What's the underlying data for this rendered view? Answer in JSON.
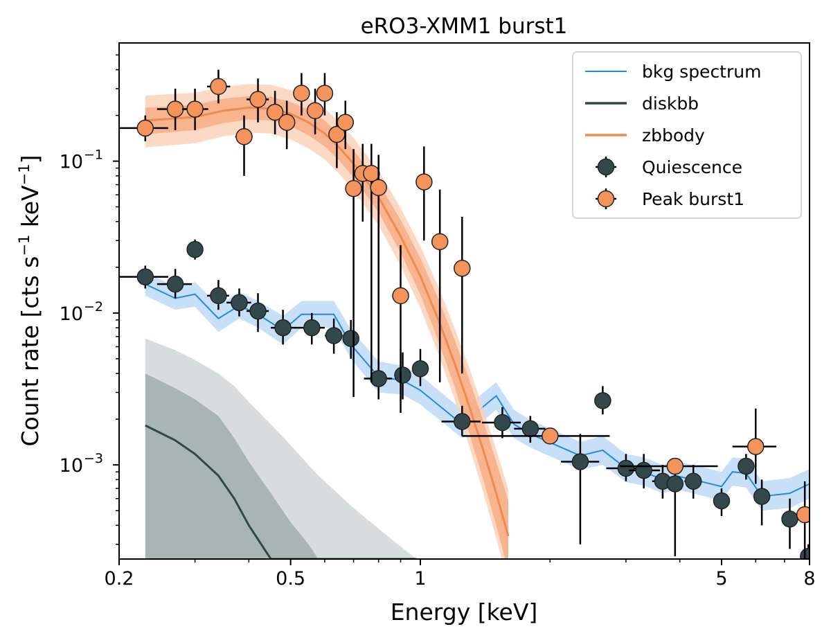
{
  "chart_data": {
    "type": "scatter",
    "title": "eRO3-XMM1 burst1",
    "xlabel": "Energy [keV]",
    "ylabel_main": "Count rate [cts s",
    "ylabel_unit_exp": "−1",
    "ylabel_mid": " keV",
    "ylabel_end": "]",
    "x_scale": "log",
    "y_scale": "log",
    "xlim": [
      0.2,
      8
    ],
    "ylim": [
      0.00024,
      0.6
    ],
    "x_ticks": [
      {
        "value": 0.2,
        "label": "0.2"
      },
      {
        "value": 0.5,
        "label": "0.5"
      },
      {
        "value": 1,
        "label": "1"
      },
      {
        "value": 5,
        "label": "5"
      },
      {
        "value": 8,
        "label": "8"
      }
    ],
    "y_ticks": [
      {
        "value": 0.001,
        "base": "10",
        "exp": "−3"
      },
      {
        "value": 0.01,
        "base": "10",
        "exp": "−2"
      },
      {
        "value": 0.1,
        "base": "10",
        "exp": "−1"
      }
    ],
    "legend_position": "top-right",
    "legend": [
      {
        "label": "bkg spectrum",
        "kind": "line",
        "color": "#1f8ae6"
      },
      {
        "label": "diskbb",
        "kind": "line",
        "color": "#2f4a46"
      },
      {
        "label": "zbbody",
        "kind": "line",
        "color": "#f08a4e"
      },
      {
        "label": "Quiescence",
        "kind": "marker",
        "color": "#33484a"
      },
      {
        "label": "Peak burst1",
        "kind": "marker",
        "color": "#f5935c"
      }
    ],
    "series": [
      {
        "name": "Peak burst1",
        "type": "errorbar",
        "color": "#f5935c",
        "points": [
          {
            "x": 0.23,
            "y": 0.165,
            "xlo": 0.2,
            "xhi": 0.26,
            "ylo": 0.135,
            "yhi": 0.2
          },
          {
            "x": 0.27,
            "y": 0.22,
            "xlo": 0.245,
            "xhi": 0.295,
            "ylo": 0.16,
            "yhi": 0.3
          },
          {
            "x": 0.3,
            "y": 0.22,
            "xlo": 0.28,
            "xhi": 0.322,
            "ylo": 0.16,
            "yhi": 0.3
          },
          {
            "x": 0.34,
            "y": 0.31,
            "xlo": 0.32,
            "xhi": 0.362,
            "ylo": 0.24,
            "yhi": 0.4
          },
          {
            "x": 0.39,
            "y": 0.145,
            "xlo": 0.372,
            "xhi": 0.408,
            "ylo": 0.08,
            "yhi": 0.2
          },
          {
            "x": 0.42,
            "y": 0.255,
            "xlo": 0.395,
            "xhi": 0.445,
            "ylo": 0.18,
            "yhi": 0.35
          },
          {
            "x": 0.46,
            "y": 0.21,
            "xlo": 0.44,
            "xhi": 0.48,
            "ylo": 0.15,
            "yhi": 0.29
          },
          {
            "x": 0.49,
            "y": 0.18,
            "xlo": 0.472,
            "xhi": 0.508,
            "ylo": 0.12,
            "yhi": 0.25
          },
          {
            "x": 0.53,
            "y": 0.28,
            "xlo": 0.51,
            "xhi": 0.55,
            "ylo": 0.2,
            "yhi": 0.38
          },
          {
            "x": 0.57,
            "y": 0.215,
            "xlo": 0.55,
            "xhi": 0.59,
            "ylo": 0.15,
            "yhi": 0.3
          },
          {
            "x": 0.6,
            "y": 0.28,
            "xlo": 0.582,
            "xhi": 0.618,
            "ylo": 0.2,
            "yhi": 0.38
          },
          {
            "x": 0.64,
            "y": 0.15,
            "xlo": 0.62,
            "xhi": 0.66,
            "ylo": 0.09,
            "yhi": 0.21
          },
          {
            "x": 0.67,
            "y": 0.18,
            "xlo": 0.655,
            "xhi": 0.685,
            "ylo": 0.12,
            "yhi": 0.25
          },
          {
            "x": 0.7,
            "y": 0.066,
            "xlo": 0.685,
            "xhi": 0.715,
            "ylo": 0.0028,
            "yhi": 0.12
          },
          {
            "x": 0.735,
            "y": 0.083,
            "xlo": 0.72,
            "xhi": 0.75,
            "ylo": 0.04,
            "yhi": 0.13
          },
          {
            "x": 0.77,
            "y": 0.083,
            "xlo": 0.755,
            "xhi": 0.785,
            "ylo": 0.0035,
            "yhi": 0.13
          },
          {
            "x": 0.8,
            "y": 0.067,
            "xlo": 0.785,
            "xhi": 0.815,
            "ylo": 0.0045,
            "yhi": 0.11
          },
          {
            "x": 0.9,
            "y": 0.013,
            "xlo": 0.87,
            "xhi": 0.93,
            "ylo": 0.0022,
            "yhi": 0.028
          },
          {
            "x": 1.02,
            "y": 0.073,
            "xlo": 0.995,
            "xhi": 1.045,
            "ylo": 0.03,
            "yhi": 0.125
          },
          {
            "x": 1.11,
            "y": 0.0295,
            "xlo": 1.08,
            "xhi": 1.14,
            "ylo": 0.0035,
            "yhi": 0.065
          },
          {
            "x": 1.25,
            "y": 0.0197,
            "xlo": 1.22,
            "xhi": 1.28,
            "ylo": 0.004,
            "yhi": 0.043
          },
          {
            "x": 2.0,
            "y": 0.00155,
            "xlo": 1.25,
            "xhi": 2.75,
            "ylo": 0.00155,
            "yhi": 0.00155
          },
          {
            "x": 3.9,
            "y": 0.00098,
            "xlo": 2.9,
            "xhi": 4.9,
            "ylo": 0.00098,
            "yhi": 0.00098
          },
          {
            "x": 6.0,
            "y": 0.00132,
            "xlo": 5.3,
            "xhi": 6.7,
            "ylo": 0.00075,
            "yhi": 0.00235
          },
          {
            "x": 7.8,
            "y": 0.00047,
            "xlo": 7.45,
            "xhi": 8.0,
            "ylo": 0.00024,
            "yhi": 0.00078
          }
        ]
      },
      {
        "name": "Quiescence",
        "type": "errorbar",
        "color": "#33484a",
        "points": [
          {
            "x": 0.23,
            "y": 0.0173,
            "xlo": 0.2,
            "xhi": 0.26,
            "ylo": 0.0145,
            "yhi": 0.0205
          },
          {
            "x": 0.27,
            "y": 0.0155,
            "xlo": 0.245,
            "xhi": 0.295,
            "ylo": 0.0125,
            "yhi": 0.0195
          },
          {
            "x": 0.3,
            "y": 0.0262,
            "xlo": 0.288,
            "xhi": 0.312,
            "ylo": 0.0225,
            "yhi": 0.0305
          },
          {
            "x": 0.34,
            "y": 0.013,
            "xlo": 0.32,
            "xhi": 0.36,
            "ylo": 0.0105,
            "yhi": 0.0165
          },
          {
            "x": 0.38,
            "y": 0.0117,
            "xlo": 0.355,
            "xhi": 0.405,
            "ylo": 0.0095,
            "yhi": 0.0145
          },
          {
            "x": 0.42,
            "y": 0.0103,
            "xlo": 0.395,
            "xhi": 0.445,
            "ylo": 0.0075,
            "yhi": 0.0135
          },
          {
            "x": 0.48,
            "y": 0.008,
            "xlo": 0.45,
            "xhi": 0.52,
            "ylo": 0.0062,
            "yhi": 0.0105
          },
          {
            "x": 0.56,
            "y": 0.008,
            "xlo": 0.52,
            "xhi": 0.6,
            "ylo": 0.0062,
            "yhi": 0.01
          },
          {
            "x": 0.63,
            "y": 0.0071,
            "xlo": 0.6,
            "xhi": 0.66,
            "ylo": 0.0054,
            "yhi": 0.0092
          },
          {
            "x": 0.69,
            "y": 0.0068,
            "xlo": 0.665,
            "xhi": 0.715,
            "ylo": 0.005,
            "yhi": 0.009
          },
          {
            "x": 0.8,
            "y": 0.0037,
            "xlo": 0.74,
            "xhi": 0.86,
            "ylo": 0.0027,
            "yhi": 0.0049
          },
          {
            "x": 0.91,
            "y": 0.0039,
            "xlo": 0.87,
            "xhi": 0.95,
            "ylo": 0.0027,
            "yhi": 0.0055
          },
          {
            "x": 1.0,
            "y": 0.0043,
            "xlo": 0.97,
            "xhi": 1.03,
            "ylo": 0.0033,
            "yhi": 0.0058
          },
          {
            "x": 1.25,
            "y": 0.00193,
            "xlo": 1.12,
            "xhi": 1.38,
            "ylo": 0.00155,
            "yhi": 0.00245
          },
          {
            "x": 1.55,
            "y": 0.0019,
            "xlo": 1.39,
            "xhi": 1.71,
            "ylo": 0.0015,
            "yhi": 0.0024
          },
          {
            "x": 1.8,
            "y": 0.00173,
            "xlo": 1.65,
            "xhi": 1.95,
            "ylo": 0.0014,
            "yhi": 0.0021
          },
          {
            "x": 2.35,
            "y": 0.00105,
            "xlo": 2.12,
            "xhi": 2.6,
            "ylo": 0.0003,
            "yhi": 0.0016
          },
          {
            "x": 2.65,
            "y": 0.00265,
            "xlo": 2.62,
            "xhi": 2.68,
            "ylo": 0.00215,
            "yhi": 0.0033
          },
          {
            "x": 3.0,
            "y": 0.00095,
            "xlo": 2.7,
            "xhi": 3.3,
            "ylo": 0.00078,
            "yhi": 0.00118
          },
          {
            "x": 3.3,
            "y": 0.00092,
            "xlo": 3.05,
            "xhi": 3.6,
            "ylo": 0.0007,
            "yhi": 0.00118
          },
          {
            "x": 3.65,
            "y": 0.00078,
            "xlo": 3.45,
            "xhi": 3.85,
            "ylo": 0.0006,
            "yhi": 0.001
          },
          {
            "x": 3.9,
            "y": 0.00075,
            "xlo": 3.75,
            "xhi": 4.05,
            "ylo": 0.00025,
            "yhi": 0.0011
          },
          {
            "x": 4.3,
            "y": 0.00078,
            "xlo": 4.1,
            "xhi": 4.5,
            "ylo": 0.0006,
            "yhi": 0.001
          },
          {
            "x": 5.0,
            "y": 0.00058,
            "xlo": 4.8,
            "xhi": 5.2,
            "ylo": 0.00046,
            "yhi": 0.0007
          },
          {
            "x": 5.7,
            "y": 0.00098,
            "xlo": 5.55,
            "xhi": 5.85,
            "ylo": 0.0008,
            "yhi": 0.00118
          },
          {
            "x": 6.2,
            "y": 0.00062,
            "xlo": 6.05,
            "xhi": 6.35,
            "ylo": 0.0004,
            "yhi": 0.0008
          },
          {
            "x": 7.2,
            "y": 0.00044,
            "xlo": 7.0,
            "xhi": 7.4,
            "ylo": 0.00028,
            "yhi": 0.0006
          },
          {
            "x": 7.95,
            "y": 0.00025,
            "xlo": 7.95,
            "xhi": 7.95,
            "ylo": 0.00024,
            "yhi": 0.0003
          }
        ]
      },
      {
        "name": "bkg spectrum",
        "type": "step",
        "color": "#1f8ae6",
        "band_color": "#aad0f3",
        "points": [
          {
            "x": 0.23,
            "y": 0.0155,
            "lo": 0.013,
            "hi": 0.0185
          },
          {
            "x": 0.27,
            "y": 0.0125,
            "lo": 0.0105,
            "hi": 0.015
          },
          {
            "x": 0.3,
            "y": 0.0133,
            "lo": 0.011,
            "hi": 0.016
          },
          {
            "x": 0.34,
            "y": 0.0092,
            "lo": 0.0075,
            "hi": 0.0112
          },
          {
            "x": 0.38,
            "y": 0.0112,
            "lo": 0.0092,
            "hi": 0.0138
          },
          {
            "x": 0.42,
            "y": 0.0098,
            "lo": 0.008,
            "hi": 0.012
          },
          {
            "x": 0.48,
            "y": 0.0077,
            "lo": 0.0062,
            "hi": 0.0096
          },
          {
            "x": 0.53,
            "y": 0.0098,
            "lo": 0.008,
            "hi": 0.012
          },
          {
            "x": 0.63,
            "y": 0.0098,
            "lo": 0.008,
            "hi": 0.012
          },
          {
            "x": 0.69,
            "y": 0.0062,
            "lo": 0.005,
            "hi": 0.0078
          },
          {
            "x": 0.8,
            "y": 0.0038,
            "lo": 0.003,
            "hi": 0.0048
          },
          {
            "x": 0.91,
            "y": 0.0036,
            "lo": 0.0029,
            "hi": 0.0045
          },
          {
            "x": 1.0,
            "y": 0.0031,
            "lo": 0.0025,
            "hi": 0.0039
          },
          {
            "x": 1.25,
            "y": 0.00185,
            "lo": 0.0015,
            "hi": 0.0023
          },
          {
            "x": 1.5,
            "y": 0.00285,
            "lo": 0.0023,
            "hi": 0.0035
          },
          {
            "x": 1.65,
            "y": 0.00185,
            "lo": 0.0015,
            "hi": 0.0023
          },
          {
            "x": 1.8,
            "y": 0.0016,
            "lo": 0.0013,
            "hi": 0.00198
          },
          {
            "x": 2.35,
            "y": 0.00115,
            "lo": 0.00093,
            "hi": 0.00142
          },
          {
            "x": 2.65,
            "y": 0.00125,
            "lo": 0.001,
            "hi": 0.00155
          },
          {
            "x": 3.0,
            "y": 0.00095,
            "lo": 0.00077,
            "hi": 0.00118
          },
          {
            "x": 3.3,
            "y": 0.0009,
            "lo": 0.00073,
            "hi": 0.00112
          },
          {
            "x": 3.65,
            "y": 0.0008,
            "lo": 0.00065,
            "hi": 0.001
          },
          {
            "x": 3.9,
            "y": 0.00085,
            "lo": 0.00069,
            "hi": 0.00106
          },
          {
            "x": 4.3,
            "y": 0.0008,
            "lo": 0.00065,
            "hi": 0.001
          },
          {
            "x": 5.0,
            "y": 0.00072,
            "lo": 0.00058,
            "hi": 0.0009
          },
          {
            "x": 5.3,
            "y": 0.0009,
            "lo": 0.00073,
            "hi": 0.00112
          },
          {
            "x": 5.7,
            "y": 0.00088,
            "lo": 0.00071,
            "hi": 0.0011
          },
          {
            "x": 6.2,
            "y": 0.00062,
            "lo": 0.0005,
            "hi": 0.00078
          },
          {
            "x": 7.2,
            "y": 0.00065,
            "lo": 0.00052,
            "hi": 0.00082
          },
          {
            "x": 8.0,
            "y": 0.00075,
            "lo": 0.0006,
            "hi": 0.00094
          }
        ]
      },
      {
        "name": "zbbody",
        "type": "model_line",
        "color": "#f08a4e",
        "inner_band_color": "#f5a77b",
        "outer_band_color": "#fbd2bb",
        "points": [
          {
            "x": 0.23,
            "y": 0.185,
            "lo": 0.15,
            "hi": 0.225
          },
          {
            "x": 0.3,
            "y": 0.195,
            "lo": 0.16,
            "hi": 0.235
          },
          {
            "x": 0.35,
            "y": 0.215,
            "lo": 0.178,
            "hi": 0.258
          },
          {
            "x": 0.4,
            "y": 0.225,
            "lo": 0.188,
            "hi": 0.268
          },
          {
            "x": 0.45,
            "y": 0.222,
            "lo": 0.185,
            "hi": 0.265
          },
          {
            "x": 0.5,
            "y": 0.205,
            "lo": 0.17,
            "hi": 0.245
          },
          {
            "x": 0.55,
            "y": 0.18,
            "lo": 0.148,
            "hi": 0.218
          },
          {
            "x": 0.6,
            "y": 0.152,
            "lo": 0.125,
            "hi": 0.185
          },
          {
            "x": 0.65,
            "y": 0.122,
            "lo": 0.1,
            "hi": 0.15
          },
          {
            "x": 0.7,
            "y": 0.096,
            "lo": 0.078,
            "hi": 0.118
          },
          {
            "x": 0.8,
            "y": 0.058,
            "lo": 0.046,
            "hi": 0.072
          },
          {
            "x": 0.9,
            "y": 0.032,
            "lo": 0.025,
            "hi": 0.041
          },
          {
            "x": 1.0,
            "y": 0.0175,
            "lo": 0.0132,
            "hi": 0.023
          },
          {
            "x": 1.1,
            "y": 0.0091,
            "lo": 0.0066,
            "hi": 0.0125
          },
          {
            "x": 1.2,
            "y": 0.0047,
            "lo": 0.0033,
            "hi": 0.0067
          },
          {
            "x": 1.3,
            "y": 0.0024,
            "lo": 0.0016,
            "hi": 0.0036
          },
          {
            "x": 1.4,
            "y": 0.00125,
            "lo": 0.0008,
            "hi": 0.00195
          },
          {
            "x": 1.5,
            "y": 0.00065,
            "lo": 0.0004,
            "hi": 0.00105
          },
          {
            "x": 1.6,
            "y": 0.00034,
            "lo": 0.0002,
            "hi": 0.00058
          }
        ]
      },
      {
        "name": "diskbb",
        "type": "model_line",
        "color": "#2f4a46",
        "inner_band_color": "#a9b5b3",
        "outer_band_color": "#d7dddc",
        "points": [
          {
            "x": 0.23,
            "y": 0.00182,
            "lo": 0.00024,
            "hi": 0.004,
            "outer_hi": 0.0068
          },
          {
            "x": 0.27,
            "y": 0.00145,
            "lo": 0.00024,
            "hi": 0.0032,
            "outer_hi": 0.0057
          },
          {
            "x": 0.3,
            "y": 0.00118,
            "lo": 0.00024,
            "hi": 0.0027,
            "outer_hi": 0.0049
          },
          {
            "x": 0.34,
            "y": 0.00085,
            "lo": 0.00024,
            "hi": 0.0021,
            "outer_hi": 0.004
          },
          {
            "x": 0.37,
            "y": 0.0006,
            "lo": 0.00024,
            "hi": 0.0015,
            "outer_hi": 0.0033
          },
          {
            "x": 0.4,
            "y": 0.0004,
            "lo": 0.00024,
            "hi": 0.00105,
            "outer_hi": 0.0026
          },
          {
            "x": 0.45,
            "y": 0.00024,
            "lo": 0.00024,
            "hi": 0.00065,
            "outer_hi": 0.00185
          },
          {
            "x": 0.5,
            "y": 0.00024,
            "lo": 0.00024,
            "hi": 0.00042,
            "outer_hi": 0.00135
          },
          {
            "x": 0.55,
            "y": 0.00024,
            "lo": 0.00024,
            "hi": 0.0003,
            "outer_hi": 0.001
          },
          {
            "x": 0.58,
            "y": 0.00024,
            "lo": 0.00024,
            "hi": 0.00024,
            "outer_hi": 0.00085
          },
          {
            "x": 0.7,
            "y": 0.00024,
            "lo": 0.00024,
            "hi": 0.00024,
            "outer_hi": 0.00052
          },
          {
            "x": 0.85,
            "y": 0.00024,
            "lo": 0.00024,
            "hi": 0.00024,
            "outer_hi": 0.00033
          },
          {
            "x": 0.98,
            "y": 0.00024,
            "lo": 0.00024,
            "hi": 0.00024,
            "outer_hi": 0.00024
          }
        ]
      }
    ]
  }
}
